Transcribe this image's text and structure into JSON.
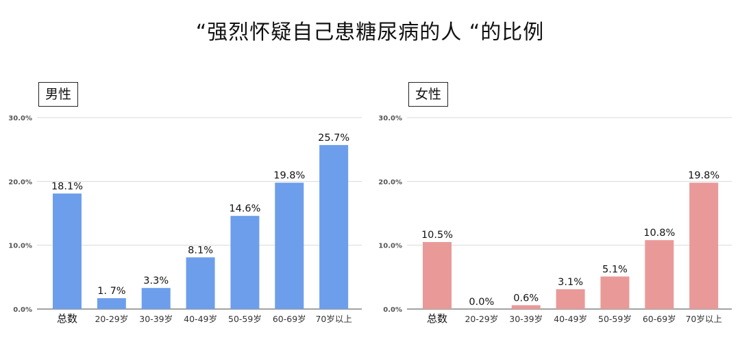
{
  "title": "“强烈怀疑自己患糖尿病的人 “的比例",
  "chart_data": [
    {
      "type": "bar",
      "title": "男性",
      "categories": [
        "总数",
        "20-29岁",
        "30-39岁",
        "40-49岁",
        "50-59岁",
        "60-69岁",
        "70岁以上"
      ],
      "values": [
        18.1,
        1.7,
        3.3,
        8.1,
        14.6,
        19.8,
        25.7
      ],
      "data_labels": [
        "18.1%",
        "1. 7%",
        "3.3%",
        "8.1%",
        "14.6%",
        "19.8%",
        "25.7%"
      ],
      "yticks": [
        "0.0%",
        "10.0%",
        "20.0%",
        "30.0%"
      ],
      "ylim": [
        0,
        30
      ],
      "grid": true,
      "color": "#6d9eeb"
    },
    {
      "type": "bar",
      "title": "女性",
      "categories": [
        "总数",
        "20-29岁",
        "30-39岁",
        "40-49岁",
        "50-59岁",
        "60-69岁",
        "70岁以上"
      ],
      "values": [
        10.5,
        0.0,
        0.6,
        3.1,
        5.1,
        10.8,
        19.8
      ],
      "data_labels": [
        "10.5%",
        "0.0%",
        "0.6%",
        "3.1%",
        "5.1%",
        "10.8%",
        "19.8%"
      ],
      "yticks": [
        "0.0%",
        "10.0%",
        "20.0%",
        "30.0%"
      ],
      "ylim": [
        0,
        30
      ],
      "grid": true,
      "color": "#ea9999"
    }
  ]
}
